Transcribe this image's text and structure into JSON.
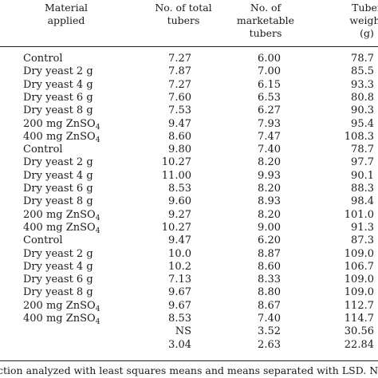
{
  "headers": {
    "material": [
      "Material",
      "applied"
    ],
    "total": [
      "No. of total",
      "tubers"
    ],
    "marketable": [
      "No. of",
      "marketable",
      "tubers"
    ],
    "weight": [
      "Tuber",
      "weight",
      "(g)"
    ]
  },
  "rows": [
    {
      "material": "Control",
      "sub": "",
      "total": "7.27",
      "marketable": "6.00",
      "weight": "78.7"
    },
    {
      "material": "Dry yeast 2 g",
      "sub": "",
      "total": "7.87",
      "marketable": "7.00",
      "weight": "85.5"
    },
    {
      "material": "Dry yeast 4 g",
      "sub": "",
      "total": "7.27",
      "marketable": "6.15",
      "weight": "93.3"
    },
    {
      "material": "Dry yeast 6 g",
      "sub": "",
      "total": "7.60",
      "marketable": "6.53",
      "weight": "80.8"
    },
    {
      "material": "Dry yeast 8 g",
      "sub": "",
      "total": "7.53",
      "marketable": "6.27",
      "weight": "90.3"
    },
    {
      "material": "200 mg ZnSO",
      "sub": "4",
      "total": "9.47",
      "marketable": "7.93",
      "weight": "95.4"
    },
    {
      "material": "400 mg ZnSO",
      "sub": "4",
      "total": "8.60",
      "marketable": "7.47",
      "weight": "108.3"
    },
    {
      "material": "Control",
      "sub": "",
      "total": "9.80",
      "marketable": "7.40",
      "weight": "78.7"
    },
    {
      "material": "Dry yeast 2 g",
      "sub": "",
      "total": "10.27",
      "marketable": "8.20",
      "weight": "97.7"
    },
    {
      "material": "Dry yeast 4 g",
      "sub": "",
      "total": "11.00",
      "marketable": "9.93",
      "weight": "90.1"
    },
    {
      "material": "Dry yeast 6 g",
      "sub": "",
      "total": "8.53",
      "marketable": "8.20",
      "weight": "88.3"
    },
    {
      "material": "Dry yeast 8 g",
      "sub": "",
      "total": "9.60",
      "marketable": "8.93",
      "weight": "98.4"
    },
    {
      "material": "200 mg ZnSO",
      "sub": "4",
      "total": "9.27",
      "marketable": "8.20",
      "weight": "101.0"
    },
    {
      "material": "400 mg ZnSO",
      "sub": "4",
      "total": "10.27",
      "marketable": "9.00",
      "weight": "91.3"
    },
    {
      "material": "Control",
      "sub": "",
      "total": "9.47",
      "marketable": "6.20",
      "weight": "87.3"
    },
    {
      "material": "Dry yeast 2 g",
      "sub": "",
      "total": "10.0",
      "marketable": "8.87",
      "weight": "109.0"
    },
    {
      "material": "Dry yeast 4 g",
      "sub": "",
      "total": "10.2",
      "marketable": "8.60",
      "weight": "106.7"
    },
    {
      "material": "Dry yeast 6 g",
      "sub": "",
      "total": "7.13",
      "marketable": "8.33",
      "weight": "109.0"
    },
    {
      "material": "Dry yeast 8 g",
      "sub": "",
      "total": "9.67",
      "marketable": "8.80",
      "weight": "109.0"
    },
    {
      "material": "200 mg ZnSO",
      "sub": "4",
      "total": "9.67",
      "marketable": "8.67",
      "weight": "112.7"
    },
    {
      "material": "400 mg ZnSO",
      "sub": "4",
      "total": "8.53",
      "marketable": "7.40",
      "weight": "114.7"
    },
    {
      "material": "",
      "sub": "",
      "total": "NS",
      "marketable": "3.52",
      "weight": "30.56"
    },
    {
      "material": "",
      "sub": "",
      "total": "3.04",
      "marketable": "2.63",
      "weight": "22.84"
    }
  ],
  "footnote": "ction analyzed with least squares means and means separated with LSD. N"
}
